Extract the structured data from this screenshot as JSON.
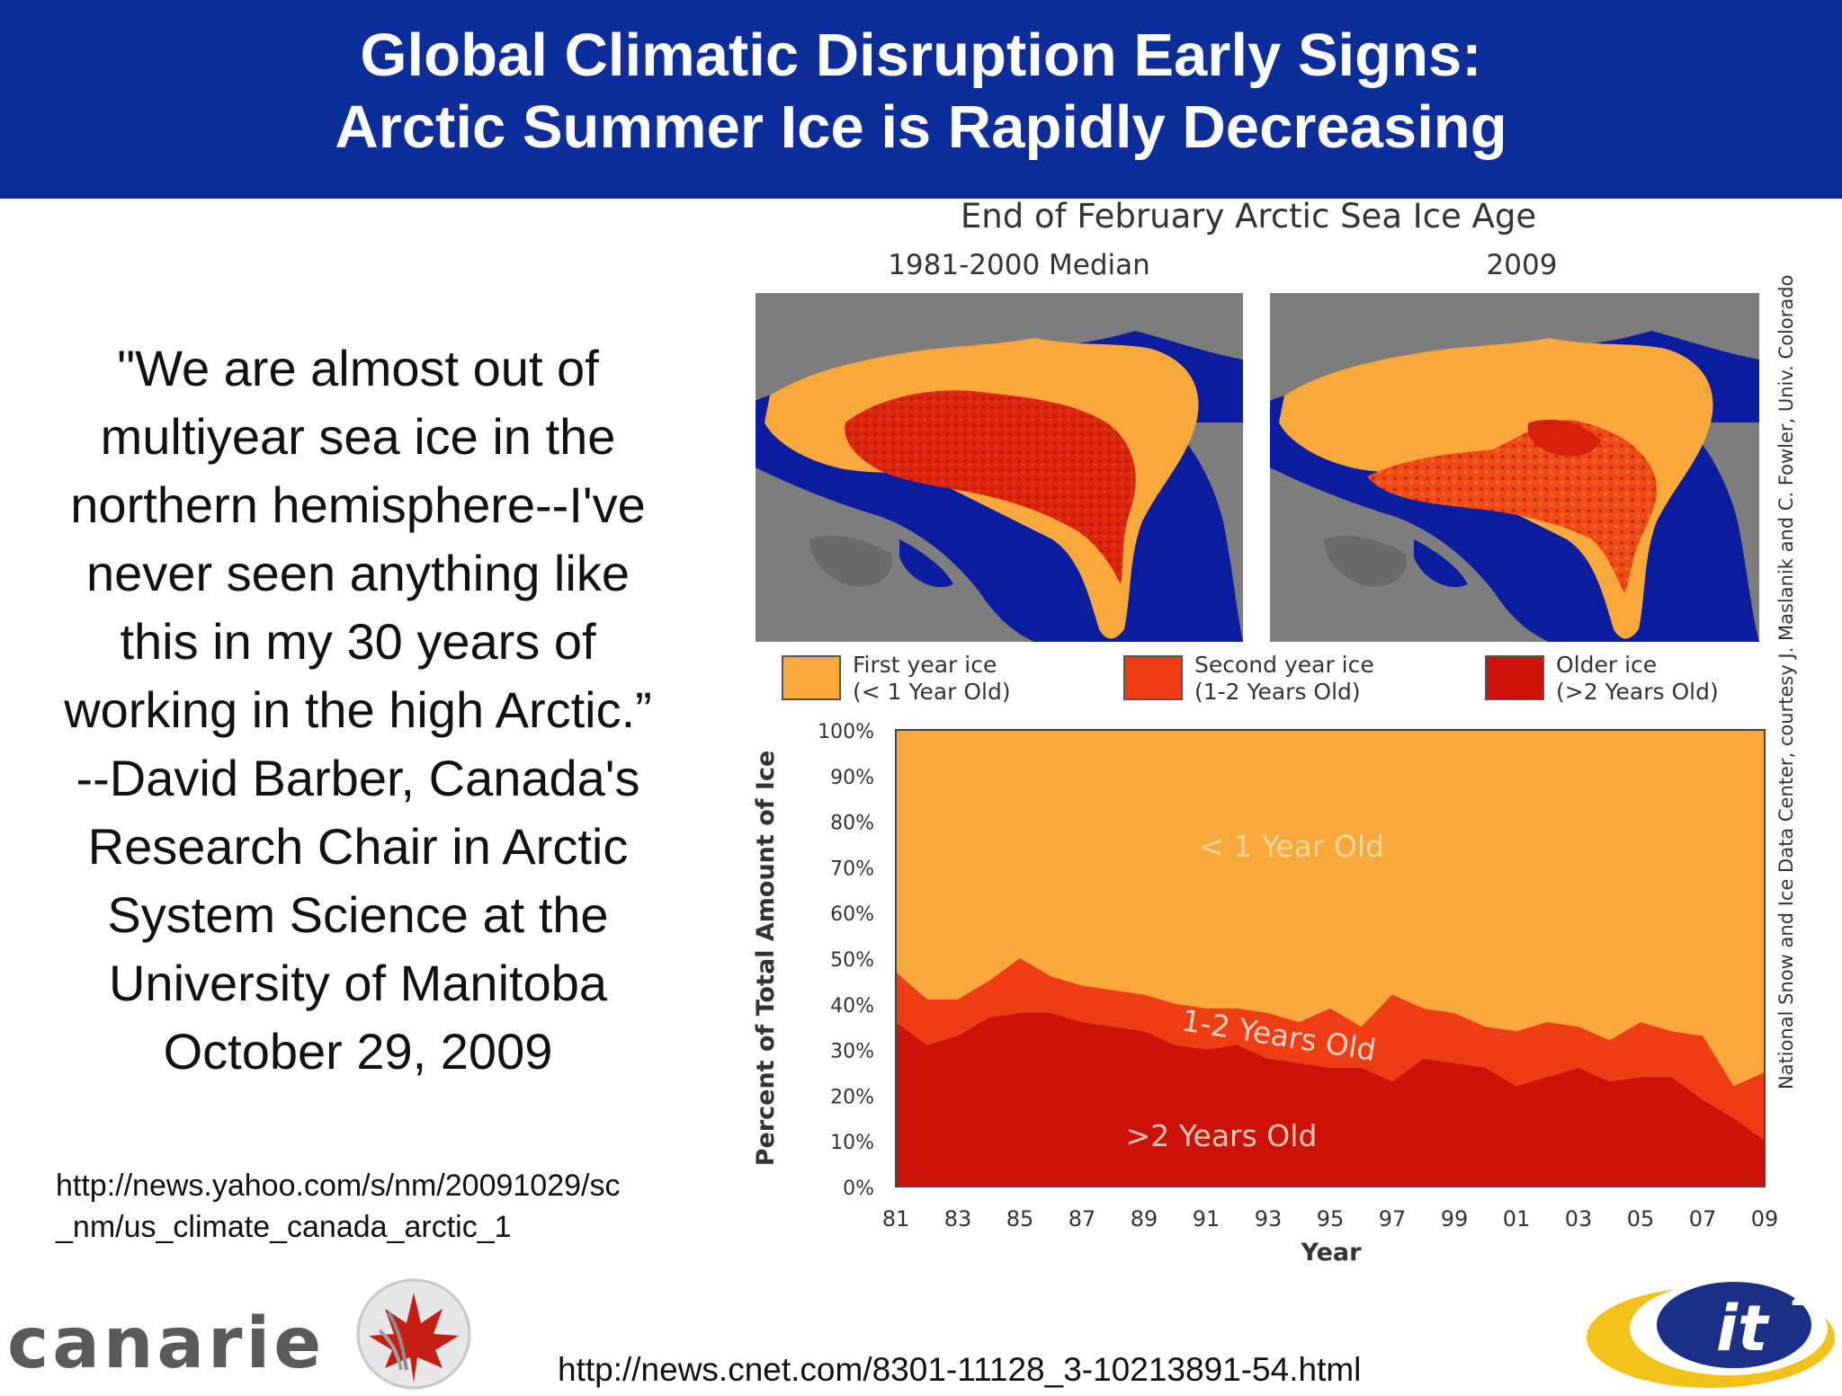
{
  "slide": {
    "title_line1": "Global Climatic Disruption Early Signs:",
    "title_line2": "Arctic Summer Ice is Rapidly Decreasing"
  },
  "quote_lines": [
    "\"We are almost out of",
    "multiyear sea ice in the",
    "northern hemisphere--I've",
    "never seen anything like",
    "this in my 30 years of",
    "working in the high Arctic.”",
    "--David Barber, Canada's",
    "Research Chair in Arctic",
    "System Science at the",
    "University of Manitoba",
    "October 29, 2009"
  ],
  "sources": {
    "yahoo_line1": "http://news.yahoo.com/s/nm/20091029/sc",
    "yahoo_line2": "_nm/us_climate_canada_arctic_1",
    "cnet": "http://news.cnet.com/8301-11128_3-10213891-54.html"
  },
  "figure": {
    "title": "End of February Arctic Sea Ice Age",
    "map_left_label": "1981-2000 Median",
    "map_right_label": "2009",
    "credit": "National Snow and Ice Data Center, courtesy J. Maslanik and C. Fowler, Univ. Colorado"
  },
  "legend": [
    {
      "line1": "First year ice",
      "line2": "(< 1 Year Old)",
      "color": "#f9a83c"
    },
    {
      "line1": "Second year ice",
      "line2": "(1-2 Years Old)",
      "color": "#ee3d14"
    },
    {
      "line1": "Older ice",
      "line2": "(>2 Years Old)",
      "color": "#cc1208"
    }
  ],
  "logos": {
    "canarie": "canarie",
    "it2_main": "it",
    "it2_sup": "2"
  },
  "chart_data": {
    "type": "area",
    "stacked": true,
    "xlabel": "Year",
    "ylabel": "Percent of Total Amount of Ice",
    "ylim": [
      0,
      100
    ],
    "y_ticks": [
      "0%",
      "10%",
      "20%",
      "30%",
      "40%",
      "50%",
      "60%",
      "70%",
      "80%",
      "90%",
      "100%"
    ],
    "x_ticks": [
      "81",
      "83",
      "85",
      "87",
      "89",
      "91",
      "93",
      "95",
      "97",
      "99",
      "01",
      "03",
      "05",
      "07",
      "09"
    ],
    "x": [
      1981,
      1982,
      1983,
      1984,
      1985,
      1986,
      1987,
      1988,
      1989,
      1990,
      1991,
      1992,
      1993,
      1994,
      1995,
      1996,
      1997,
      1998,
      1999,
      2000,
      2001,
      2002,
      2003,
      2004,
      2005,
      2006,
      2007,
      2008,
      2009
    ],
    "series": [
      {
        "name": ">2 Years Old",
        "color": "#cc1208",
        "values": [
          36,
          31,
          33,
          37,
          38,
          38,
          36,
          35,
          34,
          31,
          30,
          31,
          28,
          27,
          26,
          26,
          23,
          28,
          27,
          26,
          22,
          24,
          26,
          23,
          24,
          24,
          19,
          15,
          10
        ]
      },
      {
        "name": "1-2 Years Old",
        "color": "#ee3d14",
        "values": [
          11,
          10,
          8,
          8,
          12,
          8,
          8,
          8,
          8,
          9,
          9,
          8,
          10,
          9,
          13,
          9,
          19,
          11,
          11,
          9,
          12,
          12,
          9,
          9,
          12,
          10,
          14,
          7,
          15
        ]
      },
      {
        "name": "< 1 Year Old",
        "color": "#f9a83c",
        "values": [
          53,
          59,
          59,
          55,
          50,
          54,
          56,
          57,
          58,
          60,
          61,
          61,
          62,
          64,
          61,
          65,
          58,
          61,
          62,
          65,
          66,
          64,
          65,
          68,
          64,
          66,
          67,
          78,
          75
        ]
      }
    ],
    "area_labels": [
      "< 1 Year Old",
      "1-2 Years Old",
      ">2 Years Old"
    ]
  }
}
